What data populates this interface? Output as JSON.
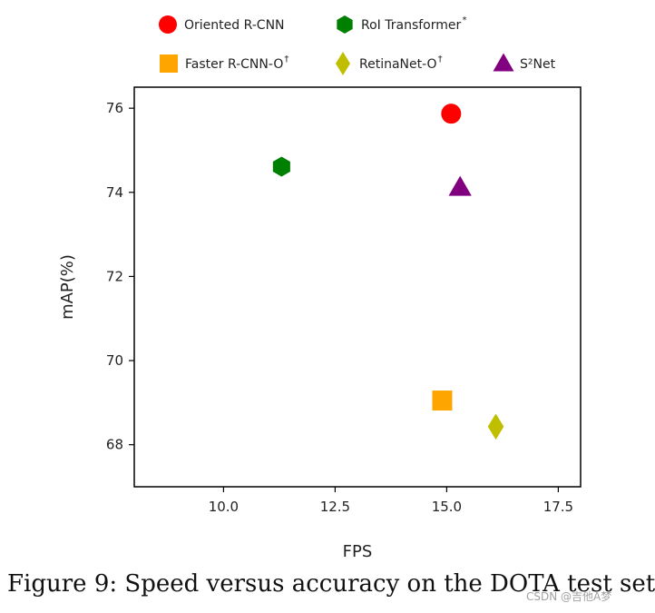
{
  "chart_data": {
    "type": "scatter",
    "title": "",
    "xlabel": "FPS",
    "ylabel": "mAP(%)",
    "xlim": [
      8.0,
      18.0
    ],
    "ylim": [
      67.0,
      76.5
    ],
    "xticks": [
      10.0,
      12.5,
      15.0,
      17.5
    ],
    "xtick_labels": [
      "10.0",
      "12.5",
      "15.0",
      "17.5"
    ],
    "yticks": [
      68,
      70,
      72,
      74,
      76
    ],
    "ytick_labels": [
      "68",
      "70",
      "72",
      "74",
      "76"
    ],
    "grid": false,
    "legend_position": "top",
    "series": [
      {
        "name": "Oriented R-CNN",
        "sup": "",
        "marker": "circle",
        "color": "#ff0000",
        "x": 15.1,
        "y": 75.87
      },
      {
        "name": "RoI Transformer",
        "sup": "*",
        "marker": "hexagon",
        "color": "#008000",
        "x": 11.3,
        "y": 74.61
      },
      {
        "name": "Faster R-CNN-O",
        "sup": "†",
        "marker": "square",
        "color": "#ffa500",
        "x": 14.9,
        "y": 69.05
      },
      {
        "name": "RetinaNet-O",
        "sup": "†",
        "marker": "diamond",
        "color": "#bfbf00",
        "x": 16.1,
        "y": 68.43
      },
      {
        "name": "S²Net",
        "sup": "",
        "marker": "triangle",
        "color": "#800080",
        "x": 15.3,
        "y": 74.12
      }
    ]
  },
  "caption": "Figure 9: Speed versus accuracy on the DOTA test set",
  "watermark": "CSDN @吉他A梦"
}
